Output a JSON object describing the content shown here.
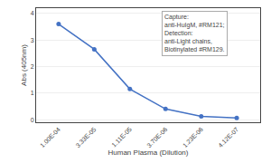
{
  "chart_data": {
    "type": "line",
    "x": [
      0.0001,
      3.33e-05,
      1.11e-05,
      3.7e-06,
      1.23e-06,
      4.12e-07
    ],
    "values": [
      3.6,
      2.65,
      1.15,
      0.4,
      0.12,
      0.06
    ],
    "xlabel": "Human Plasma (Dilution)",
    "ylabel": "Abs (405nm)",
    "xlim": [
      0.0002,
      2e-07
    ],
    "ylim": [
      -0.1,
      4.2
    ],
    "xticks": [
      {
        "value": 0.0001,
        "label": "1.00E-04"
      },
      {
        "value": 3.33e-05,
        "label": "3.33E-05"
      },
      {
        "value": 1.11e-05,
        "label": "1.11E-05"
      },
      {
        "value": 3.7e-06,
        "label": "3.70E-06"
      },
      {
        "value": 1.23e-06,
        "label": "1.23E-06"
      },
      {
        "value": 4.12e-07,
        "label": "4.12E-07"
      }
    ],
    "yticks": [
      0,
      1,
      2,
      3,
      4
    ],
    "log": "x",
    "grid": "y",
    "color": "#4472C4",
    "marker": "circle",
    "annotations": [
      "Capture:\nanti-HuIgM, #RM121;\nDetection:\nanti-Light chains,\nBiotinylated #RM129."
    ]
  }
}
